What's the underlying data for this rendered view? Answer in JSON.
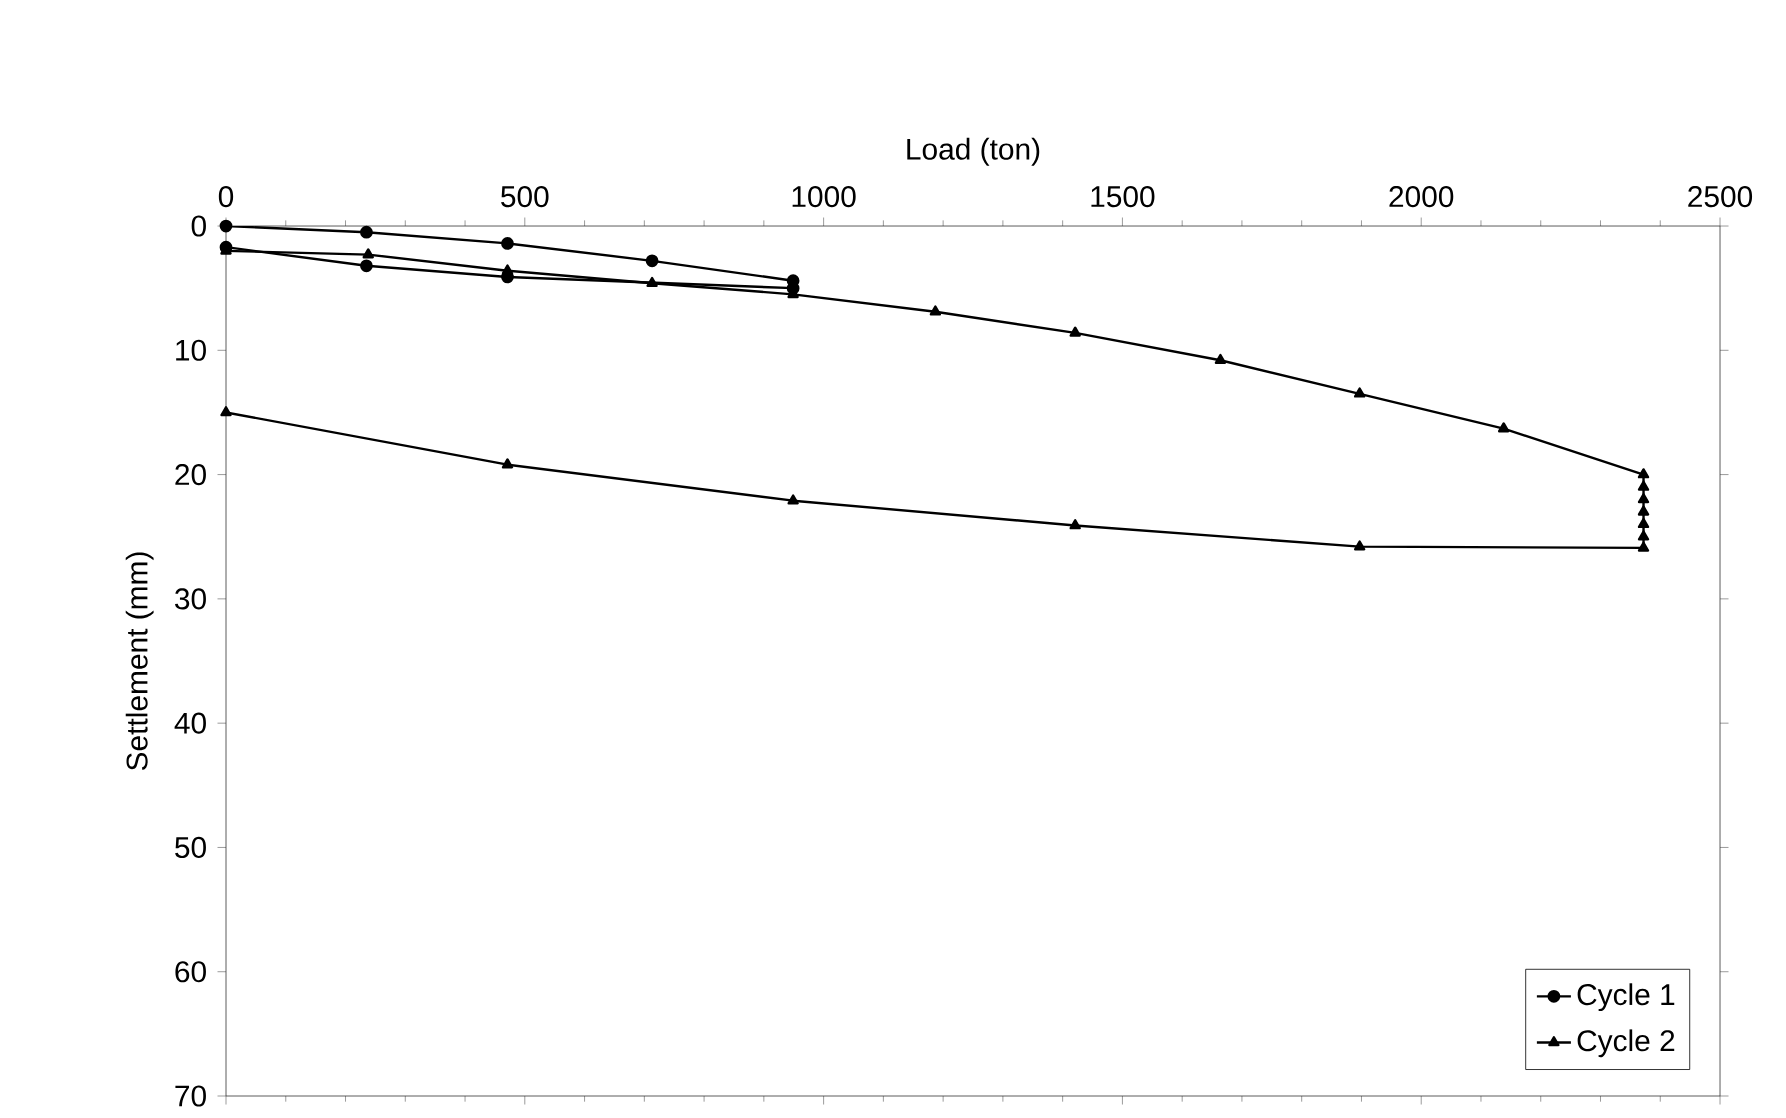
{
  "chart_data": {
    "type": "line",
    "xlabel": "Load (ton)",
    "ylabel": "Settlement (mm)",
    "xlim": [
      0,
      2500
    ],
    "xticks": [
      0,
      500,
      1000,
      1500,
      2000,
      2500
    ],
    "ylim": [
      70,
      0
    ],
    "yticks": [
      0,
      10,
      20,
      30,
      40,
      50,
      60,
      70
    ],
    "grid": false,
    "legend": "bottom right",
    "line_style": "solid",
    "series": [
      {
        "name": "Cycle 1",
        "color": "#000000",
        "marker": "circle",
        "x": [
          0,
          235,
          471,
          713,
          949,
          949,
          471,
          235,
          0
        ],
        "values": [
          0,
          0.5,
          1.4,
          2.8,
          4.4,
          5.0,
          4.1,
          3.2,
          1.7
        ]
      },
      {
        "name": "Cycle 2",
        "color": "#000000",
        "marker": "triangle",
        "x": [
          0,
          238,
          471,
          713,
          949,
          1187,
          1421,
          1664,
          1897,
          2138,
          2372,
          2372,
          2372,
          2372,
          2372,
          2372,
          2372,
          1897,
          1421,
          949,
          471,
          0
        ],
        "values": [
          2.0,
          2.3,
          3.6,
          4.6,
          5.5,
          6.9,
          8.6,
          10.8,
          13.5,
          16.3,
          20.0,
          21.0,
          22.0,
          23.0,
          24.0,
          25.0,
          25.9,
          25.8,
          24.1,
          22.1,
          19.2,
          15.0
        ]
      }
    ]
  }
}
